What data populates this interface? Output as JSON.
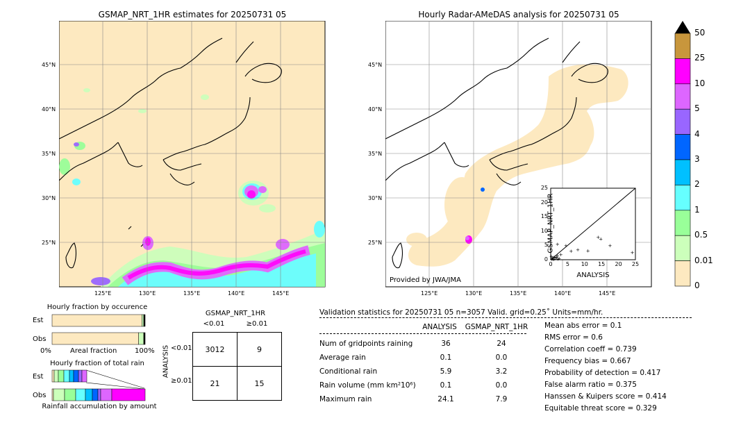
{
  "left_map": {
    "title": "GSMAP_NRT_1HR estimates for 20250731 05",
    "lat_labels": [
      "45°N",
      "40°N",
      "35°N",
      "30°N",
      "25°N"
    ],
    "lon_labels": [
      "125°E",
      "130°E",
      "135°E",
      "140°E",
      "145°E"
    ]
  },
  "right_map": {
    "title": "Hourly Radar-AMeDAS analysis for 20250731 05",
    "lat_labels": [
      "45°N",
      "40°N",
      "35°N",
      "30°N",
      "25°N"
    ],
    "lon_labels": [
      "125°E",
      "130°E",
      "135°E",
      "140°E",
      "145°E"
    ],
    "credit": "Provided by JWA/JMA"
  },
  "colorbar": {
    "labels": [
      "50",
      "25",
      "10",
      "5",
      "4",
      "3",
      "2",
      "1",
      "0.5",
      "0.01",
      "0"
    ],
    "colors": [
      "#c8963c",
      "#ff00ff",
      "#dd66ff",
      "#9966ff",
      "#0066ff",
      "#00c0ff",
      "#66ffff",
      "#99ff99",
      "#ccffbb",
      "#fde9c0"
    ]
  },
  "scatter_inset": {
    "xlabel": "ANALYSIS",
    "ylabel": "GSMAP_NRT_1HR",
    "ticks": [
      "0",
      "5",
      "10",
      "15",
      "20",
      "25"
    ]
  },
  "fraction_occurrence": {
    "title": "Hourly fraction by occurence",
    "rows": [
      "Est",
      "Obs"
    ],
    "left_label": "0%",
    "mid_label": "Areal fraction",
    "right_label": "100%"
  },
  "fraction_total": {
    "title": "Hourly fraction of total rain",
    "rows": [
      "Est",
      "Obs"
    ],
    "footer": "Rainfall accumulation by amount"
  },
  "contingency": {
    "title": "GSMAP_NRT_1HR",
    "col_headers": [
      "<0.01",
      "≥0.01"
    ],
    "row_headers": [
      "<0.01",
      "≥0.01"
    ],
    "side_label": "ANALYSIS",
    "cells": [
      [
        "3012",
        "9"
      ],
      [
        "21",
        "15"
      ]
    ]
  },
  "validation": {
    "header": "Validation statistics for 20250731 05  n=3057 Valid. grid=0.25˚ Units=mm/hr.",
    "col_analysis": "ANALYSIS",
    "col_gsmap": "GSMAP_NRT_1HR",
    "rows": [
      {
        "label": "Num of gridpoints raining",
        "analysis": "36",
        "gsmap": "24"
      },
      {
        "label": "Average rain",
        "analysis": "0.1",
        "gsmap": "0.0"
      },
      {
        "label": "Conditional rain",
        "analysis": "5.9",
        "gsmap": "3.2"
      },
      {
        "label": "Rain volume (mm km²10⁶)",
        "analysis": "0.1",
        "gsmap": "0.0"
      },
      {
        "label": "Maximum rain",
        "analysis": "24.1",
        "gsmap": "7.9"
      }
    ],
    "scores": [
      "Mean abs error =    0.1",
      "RMS error =    0.6",
      "Correlation coeff =  0.739",
      "Frequency bias =  0.667",
      "Probability of detection =  0.417",
      "False alarm ratio =  0.375",
      "Hanssen & Kuipers score =  0.414",
      "Equitable threat score =  0.329"
    ]
  },
  "chart_data": [
    {
      "type": "scatter",
      "title": "",
      "xlabel": "ANALYSIS",
      "ylabel": "GSMAP_NRT_1HR",
      "xlim": [
        0,
        25
      ],
      "ylim": [
        0,
        25
      ],
      "points": [
        [
          0.3,
          0.2
        ],
        [
          0.5,
          0.4
        ],
        [
          0.7,
          0.8
        ],
        [
          1.0,
          0.3
        ],
        [
          1.2,
          1.0
        ],
        [
          1.5,
          0.6
        ],
        [
          1.8,
          0.9
        ],
        [
          2.0,
          1.5
        ],
        [
          2.2,
          0.2
        ],
        [
          2.5,
          0.5
        ],
        [
          3.0,
          1.8
        ],
        [
          2.0,
          5.5
        ],
        [
          4.5,
          5.0
        ],
        [
          6.0,
          3.0
        ],
        [
          8.0,
          3.5
        ],
        [
          11.0,
          3.2
        ],
        [
          14.0,
          7.9
        ],
        [
          14.8,
          7.3
        ],
        [
          17.5,
          5.0
        ],
        [
          24.1,
          2.5
        ],
        [
          0.2,
          1.2
        ],
        [
          0.8,
          0.1
        ]
      ]
    },
    {
      "type": "bar",
      "title": "Hourly fraction by occurence",
      "categories": [
        "Est",
        "Obs"
      ],
      "series": [
        {
          "values": [
            0.965,
            0.93
          ]
        },
        {
          "values": [
            0.02,
            0.055
          ]
        },
        {
          "values": [
            0.015,
            0.015
          ]
        }
      ]
    }
  ]
}
